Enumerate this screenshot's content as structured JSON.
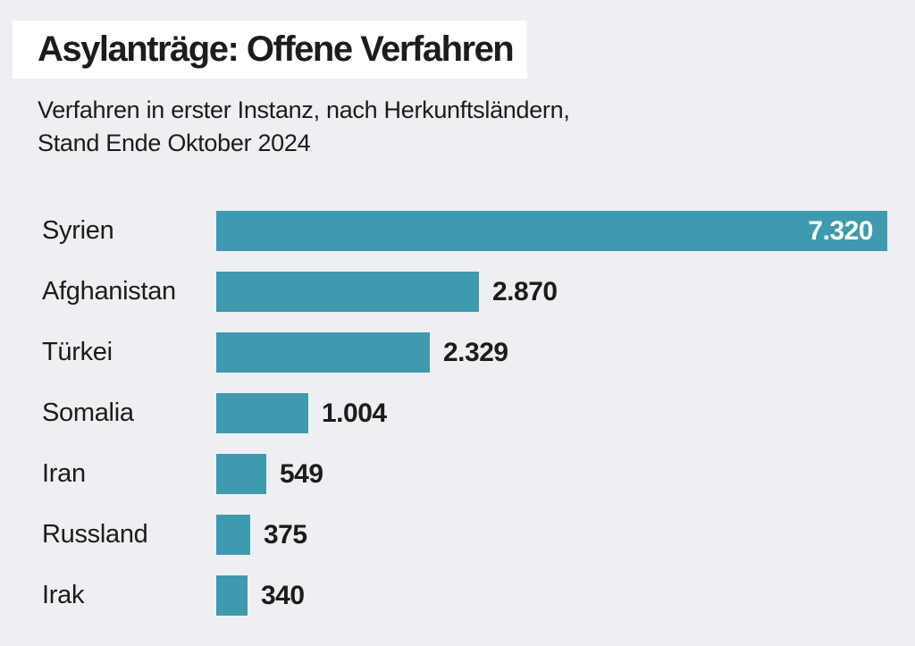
{
  "page": {
    "background": "#edeff2"
  },
  "header": {
    "title": "Asylanträge: Offene Verfahren",
    "subtitle_line1": "Verfahren in erster Instanz, nach Herkunftsländern,",
    "subtitle_line2": "Stand Ende Oktober 2024"
  },
  "colors": {
    "background": "#edeff2",
    "title_background": "#ffffff",
    "bar": "#3e9aae",
    "text": "#1c1c1a",
    "value_inside_text": "#ffffff"
  },
  "chart_data": {
    "type": "bar",
    "orientation": "horizontal",
    "title": "Asylanträge: Offene Verfahren",
    "subtitle": "Verfahren in erster Instanz, nach Herkunftsländern, Stand Ende Oktober 2024",
    "categories": [
      "Syrien",
      "Afghanistan",
      "Türkei",
      "Somalia",
      "Iran",
      "Russland",
      "Irak"
    ],
    "values": [
      7320,
      2870,
      2329,
      1004,
      549,
      375,
      340
    ],
    "value_labels": [
      "7.320",
      "2.870",
      "2.329",
      "1.004",
      "549",
      "375",
      "340"
    ],
    "xlabel": "",
    "ylabel": "",
    "xlim": [
      0,
      7320
    ],
    "grid": false,
    "legend": false
  }
}
